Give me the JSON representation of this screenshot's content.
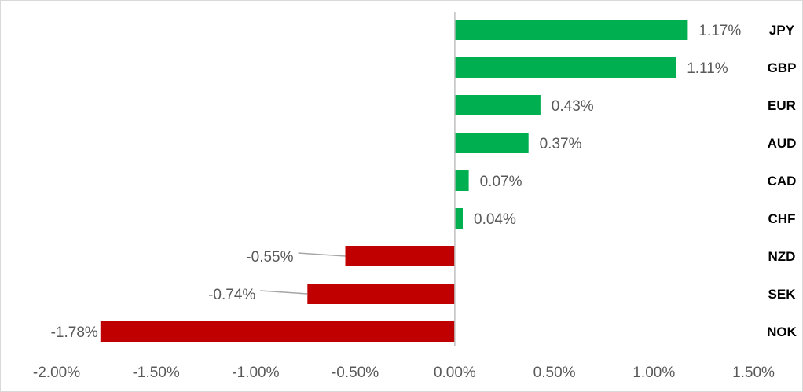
{
  "chart_data": {
    "type": "bar",
    "orientation": "horizontal",
    "title": "",
    "xlabel": "",
    "ylabel": "",
    "categories": [
      "JPY",
      "GBP",
      "EUR",
      "AUD",
      "CAD",
      "CHF",
      "NZD",
      "SEK",
      "NOK"
    ],
    "values": [
      1.17,
      1.11,
      0.43,
      0.37,
      0.07,
      0.04,
      -0.55,
      -0.74,
      -1.78
    ],
    "data_labels": [
      "1.17%",
      "1.11%",
      "0.43%",
      "0.37%",
      "0.07%",
      "0.04%",
      "-0.55%",
      "-0.74%",
      "-1.78%"
    ],
    "xlim": [
      -2.0,
      1.5
    ],
    "x_ticks": [
      -2.0,
      -1.5,
      -1.0,
      -0.5,
      0.0,
      0.5,
      1.0,
      1.5
    ],
    "x_tick_labels": [
      "-2.00%",
      "-1.50%",
      "-1.00%",
      "-0.50%",
      "0.00%",
      "0.50%",
      "1.00%",
      "1.50%"
    ],
    "grid": false,
    "legend": "none",
    "colors": {
      "positive": "#00b050",
      "negative": "#c00000",
      "axis": "#bfbfbf",
      "leader": "#a6a6a6"
    }
  }
}
